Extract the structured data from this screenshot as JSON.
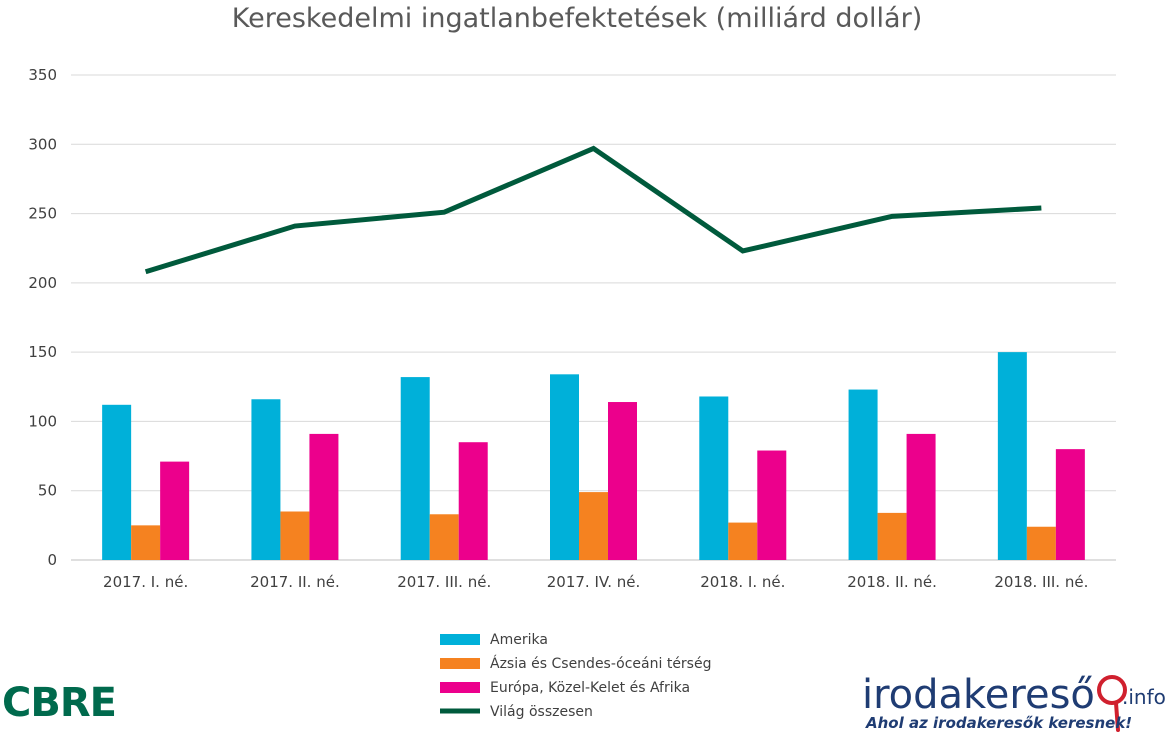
{
  "chart_data": {
    "type": "bar",
    "title": "Kereskedelmi ingatlanbefektetések (milliárd dollár)",
    "categories": [
      "2017. I. né.",
      "2017. II. né.",
      "2017. III. né.",
      "2017. IV. né.",
      "2018. I. né.",
      "2018. II. né.",
      "2018. III. né."
    ],
    "ylim": [
      0,
      350
    ],
    "yticks": [
      0,
      50,
      100,
      150,
      200,
      250,
      300,
      350
    ],
    "grid": true,
    "legend_position": "bottom",
    "series": [
      {
        "name": "Amerika",
        "type": "bar",
        "color": "#00b0d9",
        "values": [
          112,
          116,
          132,
          134,
          118,
          123,
          150
        ]
      },
      {
        "name": "Ázsia és Csendes-óceáni térség",
        "type": "bar",
        "color": "#f58220",
        "values": [
          25,
          35,
          33,
          49,
          27,
          34,
          24
        ]
      },
      {
        "name": "Európa, Közel-Kelet és Afrika",
        "type": "bar",
        "color": "#ec008c",
        "values": [
          71,
          91,
          85,
          114,
          79,
          91,
          80
        ]
      },
      {
        "name": "Világ összesen",
        "type": "line",
        "color": "#005a3c",
        "values": [
          208,
          241,
          251,
          297,
          223,
          248,
          254
        ]
      }
    ]
  },
  "logos": {
    "left": "CBRE",
    "right_main": "irodakereső",
    "right_suffix": ".info",
    "right_slogan": "Ahol az irodakeresők keresnek!"
  }
}
